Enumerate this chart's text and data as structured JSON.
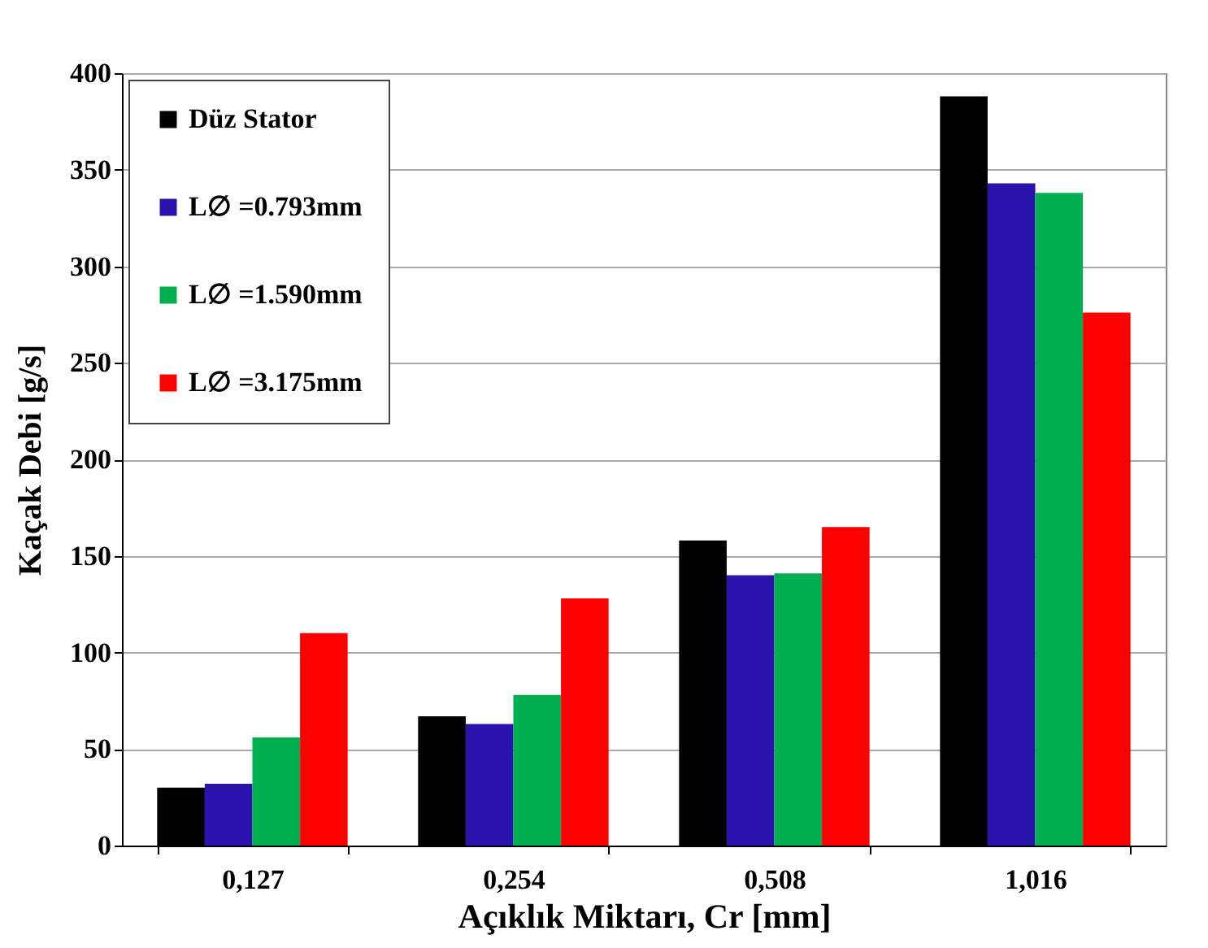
{
  "chart_data": {
    "type": "bar",
    "xlabel": "Açıklık Miktarı, Cr [mm]",
    "ylabel": "Kaçak Debi [g/s]",
    "categories": [
      "0,127",
      "0,254",
      "0,508",
      "1,016"
    ],
    "series": [
      {
        "name": "Düz Stator",
        "color": "#000000",
        "values": [
          30,
          67,
          158,
          388
        ]
      },
      {
        "name": "L∅ =0.793mm",
        "color": "#2a12ac",
        "values": [
          32,
          63,
          140,
          343
        ]
      },
      {
        "name": "L∅ =1.590mm",
        "color": "#00b050",
        "values": [
          56,
          78,
          141,
          338
        ]
      },
      {
        "name": "L∅ =3.175mm",
        "color": "#ff0000",
        "values": [
          110,
          128,
          165,
          276
        ]
      }
    ],
    "ylim": [
      0,
      400
    ],
    "yticks": [
      0,
      50,
      100,
      150,
      200,
      250,
      300,
      350,
      400
    ],
    "grid": true,
    "legend": "top left"
  }
}
